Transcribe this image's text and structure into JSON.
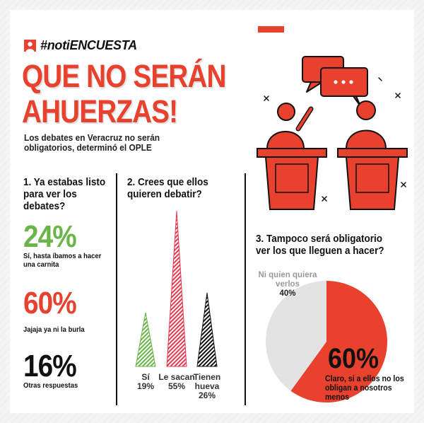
{
  "header": {
    "hashtag": "#notiENCUESTA",
    "headline_line1": "QUE NO SERÁN",
    "headline_line2": "AHUERZAS!",
    "subtitle": "Los debates en Veracruz no serán obligatorios, determinó el OPLE"
  },
  "colors": {
    "accent_red": "#e8412e",
    "green": "#6ab547",
    "pink": "#e6384f",
    "black": "#111111",
    "gray": "#e3e3e3"
  },
  "icons": [
    "user-icon",
    "debate-podium-illustration",
    "speech-bubbles-icon"
  ],
  "chart_data": [
    {
      "type": "table",
      "title": "1. Ya estabas listo para ver los debates?",
      "rows": [
        {
          "value": "24%",
          "label": "Sí, hasta íbamos a hacer una carnita",
          "color": "#6ab547"
        },
        {
          "value": "60%",
          "label": "Jajaja ya ni la burla",
          "color": "#e8412e"
        },
        {
          "value": "16%",
          "label": "Otras respuestas",
          "color": "#111111"
        }
      ]
    },
    {
      "type": "bar",
      "title": "2. Crees que ellos quieren debatir?",
      "categories": [
        "Sí",
        "Le sacan",
        "Tienen hueva"
      ],
      "values": [
        19,
        55,
        26
      ],
      "value_labels": [
        "19%",
        "55%",
        "26%"
      ],
      "colors": [
        "#6ab547",
        "#e6384f",
        "#111111"
      ],
      "ylim": [
        0,
        55
      ]
    },
    {
      "type": "pie",
      "title": "3. Tampoco será obligatorio ver los que lleguen a hacer?",
      "slices": [
        {
          "label": "Ni quien quiera verlos",
          "value": 40,
          "value_label": "40%",
          "color": "#e3e3e3"
        },
        {
          "label": "Claro, si a ellos no los obligan a nosotros menos",
          "value": 60,
          "value_label": "60%",
          "color": "#e8412e"
        }
      ]
    }
  ]
}
